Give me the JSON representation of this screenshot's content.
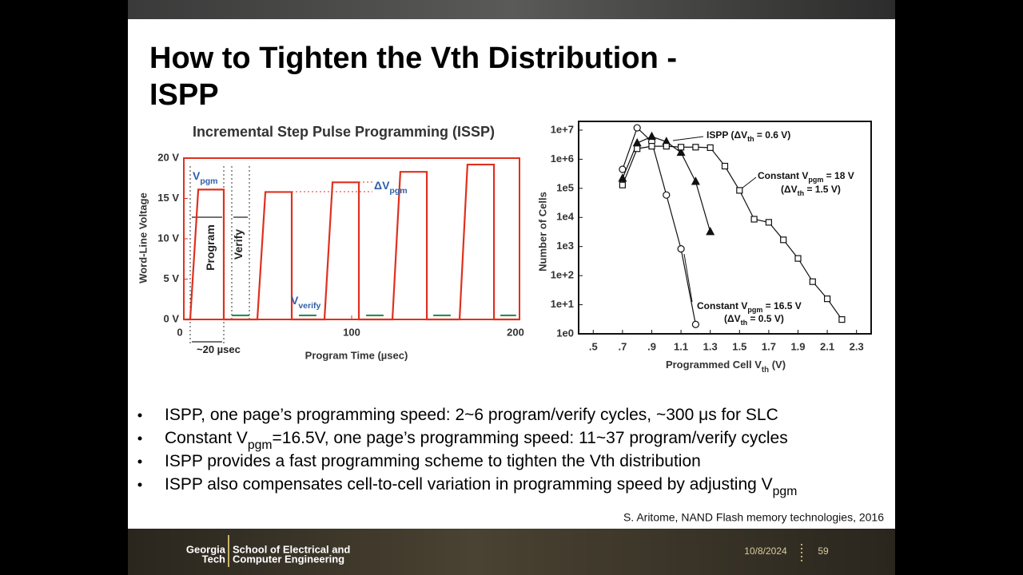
{
  "slide": {
    "title_lines": [
      "How to Tighten the Vth Distribution -",
      "ISPP"
    ],
    "bullets": [
      [
        {
          "text": "ISPP, one page’s programming speed: 2~6 program/verify cycles, ~300 μs for SLC"
        }
      ],
      [
        {
          "text": "Constant V"
        },
        {
          "sub": "pgm"
        },
        {
          "text": "=16.5V, one page’s programming speed: 11~37 program/verify cycles"
        }
      ],
      [
        {
          "text": "ISPP provides a fast programming scheme to tighten the Vth distribution"
        }
      ],
      [
        {
          "text": "ISPP also compensates cell-to-cell variation in programming speed by adjusting V"
        },
        {
          "sub": "pgm"
        }
      ]
    ],
    "citation": "S. Aritome, NAND Flash memory technologies, 2016",
    "footer": {
      "logo_lines": [
        "Georgia",
        "Tech"
      ],
      "department_lines": [
        "School of Electrical and",
        "Computer Engineering"
      ],
      "date": "10/8/2024",
      "page": "59"
    }
  },
  "chart_data": [
    {
      "type": "line",
      "title": "Incremental Step Pulse Programming (ISSP)",
      "x_label": "Program Time (µsec)",
      "y_label": "Word-Line Voltage",
      "xlim": [
        0,
        200
      ],
      "xticks": [
        0,
        100,
        200
      ],
      "ylim": [
        0,
        20
      ],
      "yticks": [
        {
          "value": 0,
          "label": "0 V"
        },
        {
          "value": 5,
          "label": "5 V"
        },
        {
          "value": 10,
          "label": "10 V"
        },
        {
          "value": 15,
          "label": "15 V"
        },
        {
          "value": 20,
          "label": "20 V"
        }
      ],
      "frame_color": "#e0301e",
      "series": [
        {
          "color": "#e0301e",
          "x": [
            0,
            3.8,
            8.6,
            23.8,
            23.8,
            43.8,
            48.6,
            64.3,
            64.3,
            83.8,
            88.6,
            104.3,
            104.3,
            124.3,
            129,
            144.8,
            144.8,
            164.3,
            169,
            184.8,
            184.8,
            200
          ],
          "values": [
            0,
            0,
            16.1,
            16.1,
            0,
            0,
            15.8,
            15.8,
            0,
            0,
            17,
            17,
            0,
            0,
            18.3,
            18.3,
            0,
            0,
            19.2,
            19.2,
            0,
            0
          ]
        },
        {
          "color": "#2e8b57",
          "x": [
            28.6,
            39,
            null,
            68.6,
            79,
            null,
            108.6,
            119,
            null,
            148.6,
            159,
            null,
            188.6,
            198
          ],
          "values": [
            0.5,
            0.5,
            null,
            0.5,
            0.5,
            null,
            0.5,
            0.5,
            null,
            0.5,
            0.5,
            null,
            0.5,
            0.5
          ]
        }
      ],
      "annotations": [
        {
          "color": "#2f5fa8",
          "lines": [
            [
              {
                "text": "V"
              },
              {
                "sub": "pgm"
              }
            ]
          ]
        },
        {
          "color": "#222222",
          "lines": [
            [
              {
                "text": "Program"
              }
            ]
          ]
        },
        {
          "color": "#222222",
          "lines": [
            [
              {
                "text": "Verify"
              }
            ]
          ]
        },
        {
          "color": "#2f5fa8",
          "lines": [
            [
              {
                "text": "ΔV"
              },
              {
                "sub": "pgm"
              }
            ]
          ]
        },
        {
          "color": "#2f5fa8",
          "lines": [
            [
              {
                "text": "V"
              },
              {
                "sub": "verify"
              }
            ]
          ]
        },
        {
          "color": "#222222",
          "lines": [
            [
              {
                "text": "~20 µsec"
              }
            ]
          ]
        }
      ]
    },
    {
      "type": "line",
      "x_label": [
        {
          "text": "Programmed Cell V"
        },
        {
          "sub": "th"
        },
        {
          "text": " (V)"
        }
      ],
      "y_label": "Number of Cells",
      "xlim": [
        0.4,
        2.4
      ],
      "xticks": [
        {
          "value": 0.5,
          "label": ".5"
        },
        {
          "value": 0.7,
          "label": ".7"
        },
        {
          "value": 0.9,
          "label": ".9"
        },
        1.1,
        1.3,
        1.5,
        1.7,
        1.9,
        2.1,
        2.3
      ],
      "ylim": [
        1,
        20000000
      ],
      "ylog": true,
      "yticks": [
        {
          "value": 1,
          "label": "1e0"
        },
        {
          "value": 10,
          "label": "1e+1"
        },
        {
          "value": 100,
          "label": "1e+2"
        },
        {
          "value": 1000,
          "label": "1e3"
        },
        {
          "value": 10000,
          "label": "1e4"
        },
        {
          "value": 100000,
          "label": "1e5"
        },
        {
          "value": 1000000,
          "label": "1e+6"
        },
        {
          "value": 10000000,
          "label": "1e+7"
        }
      ],
      "frame_color": "#111111",
      "series": [
        {
          "color": "#111111",
          "marker": "circle",
          "x": [
            0.7,
            0.8,
            0.9,
            1.0,
            1.1,
            1.2
          ],
          "values": [
            450000,
            12000000,
            4000000,
            59000,
            830,
            2.1
          ]
        },
        {
          "color": "#111111",
          "marker": "triangle",
          "x": [
            0.7,
            0.8,
            0.9,
            1.0,
            1.1,
            1.2,
            1.3
          ],
          "values": [
            220000,
            3600000,
            6000000,
            4000000,
            1700000,
            170000,
            3200
          ]
        },
        {
          "color": "#111111",
          "marker": "square",
          "x": [
            0.7,
            0.8,
            0.9,
            1.0,
            1.1,
            1.2,
            1.3,
            1.4,
            1.5,
            1.6,
            1.7,
            1.8,
            1.9,
            2.0,
            2.1,
            2.2
          ],
          "values": [
            130000,
            2300000,
            2800000,
            2800000,
            2600000,
            2600000,
            2500000,
            580000,
            85000,
            8700,
            6800,
            1700,
            390,
            62,
            16,
            3.1
          ]
        }
      ],
      "annotations": [
        {
          "color": "#111111",
          "lines": [
            [
              {
                "text": "ISPP (ΔV"
              },
              {
                "sub": "th"
              },
              {
                "text": " = 0.6 V)"
              }
            ]
          ]
        },
        {
          "color": "#111111",
          "lines": [
            [
              {
                "text": "Constant V"
              },
              {
                "sub": "pgm"
              },
              {
                "text": " = 18 V"
              }
            ],
            [
              {
                "text": "(ΔV"
              },
              {
                "sub": "th"
              },
              {
                "text": " = 1.5 V)"
              }
            ]
          ]
        },
        {
          "color": "#111111",
          "lines": [
            [
              {
                "text": "Constant V"
              },
              {
                "sub": "pgm"
              },
              {
                "text": " = 16.5 V"
              }
            ],
            [
              {
                "text": "(ΔV"
              },
              {
                "sub": "th"
              },
              {
                "text": " = 0.5 V)"
              }
            ]
          ]
        }
      ]
    }
  ]
}
